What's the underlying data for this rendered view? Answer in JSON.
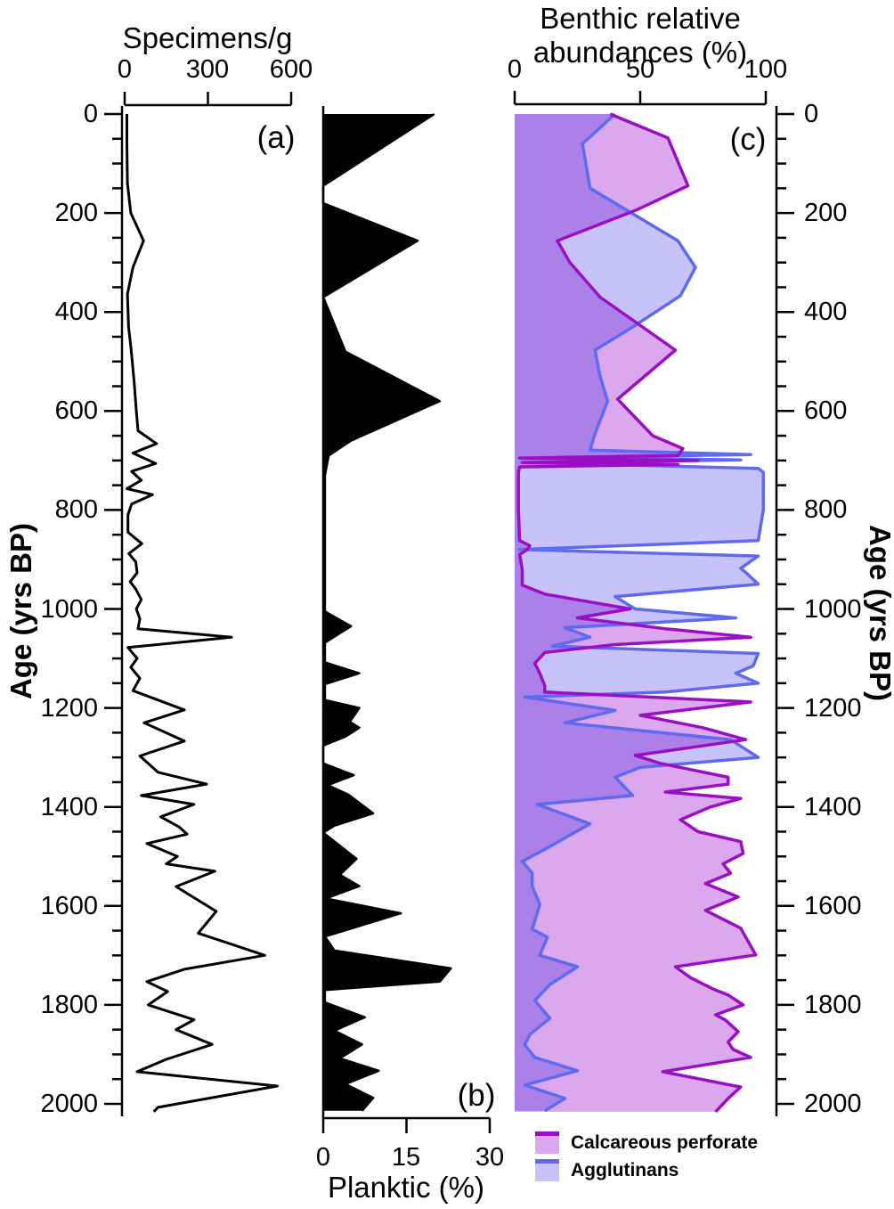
{
  "panels": {
    "a": {
      "label": "(a)"
    },
    "b": {
      "label": "(b)"
    },
    "c": {
      "label": "(c)"
    }
  },
  "age_axis": {
    "title": "Age (yrs BP)",
    "min": 0,
    "max": 2000,
    "major_ticks": [
      0,
      200,
      400,
      600,
      800,
      1000,
      1200,
      1400,
      1600,
      1800,
      2000
    ],
    "minor_step": 50
  },
  "legend": {
    "items": [
      {
        "label": "Calcareous perforate",
        "fill": "#dba7ee",
        "border": "#9a0fc4"
      },
      {
        "label": "Agglutinans",
        "fill": "#c7c3fa",
        "border": "#5f6af0"
      }
    ]
  },
  "chart_data": [
    {
      "type": "line",
      "panel": "a",
      "title": "Specimens/g",
      "xlabel": "Specimens/g",
      "ylabel": "Age (yrs BP)",
      "xlim": [
        0,
        600
      ],
      "xticks": [
        0,
        300,
        600
      ],
      "ylim": [
        0,
        2000
      ],
      "orientation": "vertical_depth_axis",
      "series": [
        {
          "name": "specimens_per_g",
          "color": "#000000",
          "points": [
            [
              0,
              8
            ],
            [
              60,
              8
            ],
            [
              140,
              10
            ],
            [
              200,
              22
            ],
            [
              256,
              68
            ],
            [
              310,
              30
            ],
            [
              364,
              10
            ],
            [
              430,
              14
            ],
            [
              480,
              24
            ],
            [
              540,
              34
            ],
            [
              600,
              42
            ],
            [
              640,
              48
            ],
            [
              666,
              115
            ],
            [
              685,
              30
            ],
            [
              706,
              112
            ],
            [
              722,
              25
            ],
            [
              740,
              60
            ],
            [
              757,
              8
            ],
            [
              769,
              100
            ],
            [
              788,
              25
            ],
            [
              810,
              12
            ],
            [
              845,
              12
            ],
            [
              868,
              62
            ],
            [
              888,
              15
            ],
            [
              905,
              40
            ],
            [
              927,
              45
            ],
            [
              945,
              20
            ],
            [
              960,
              40
            ],
            [
              981,
              60
            ],
            [
              1000,
              42
            ],
            [
              1020,
              55
            ],
            [
              1040,
              48
            ],
            [
              1057,
              385
            ],
            [
              1078,
              12
            ],
            [
              1100,
              45
            ],
            [
              1118,
              22
            ],
            [
              1140,
              55
            ],
            [
              1165,
              30
            ],
            [
              1204,
              215
            ],
            [
              1230,
              70
            ],
            [
              1267,
              215
            ],
            [
              1297,
              55
            ],
            [
              1330,
              120
            ],
            [
              1354,
              295
            ],
            [
              1377,
              60
            ],
            [
              1395,
              250
            ],
            [
              1420,
              130
            ],
            [
              1440,
              195
            ],
            [
              1455,
              225
            ],
            [
              1474,
              80
            ],
            [
              1500,
              190
            ],
            [
              1515,
              150
            ],
            [
              1530,
              325
            ],
            [
              1561,
              185
            ],
            [
              1611,
              330
            ],
            [
              1655,
              265
            ],
            [
              1700,
              505
            ],
            [
              1728,
              215
            ],
            [
              1753,
              80
            ],
            [
              1773,
              155
            ],
            [
              1800,
              85
            ],
            [
              1830,
              250
            ],
            [
              1850,
              185
            ],
            [
              1880,
              315
            ],
            [
              1910,
              150
            ],
            [
              1935,
              45
            ],
            [
              1964,
              550
            ],
            [
              2007,
              120
            ],
            [
              2016,
              105
            ]
          ]
        }
      ]
    },
    {
      "type": "area",
      "panel": "b",
      "title": "Planktic (%)",
      "xlabel": "Planktic (%)",
      "ylabel": "Age (yrs BP)",
      "xlim": [
        0,
        30
      ],
      "xticks": [
        0,
        15,
        30
      ],
      "ylim": [
        0,
        2000
      ],
      "orientation": "vertical_depth_axis",
      "series": [
        {
          "name": "planktic_percent",
          "color": "#000000",
          "fill": "#000000",
          "points": [
            [
              0,
              20
            ],
            [
              145,
              0
            ],
            [
              180,
              0
            ],
            [
              256,
              17
            ],
            [
              370,
              0
            ],
            [
              480,
              4
            ],
            [
              580,
              21
            ],
            [
              660,
              5
            ],
            [
              690,
              1
            ],
            [
              730,
              0.3
            ],
            [
              1005,
              0.3
            ],
            [
              1035,
              5
            ],
            [
              1068,
              0.3
            ],
            [
              1108,
              0.3
            ],
            [
              1130,
              6.5
            ],
            [
              1152,
              0.3
            ],
            [
              1184,
              0.3
            ],
            [
              1200,
              6.5
            ],
            [
              1228,
              4.8
            ],
            [
              1240,
              6.5
            ],
            [
              1258,
              4
            ],
            [
              1276,
              0
            ],
            [
              1312,
              0
            ],
            [
              1336,
              5.5
            ],
            [
              1356,
              0.8
            ],
            [
              1375,
              4.5
            ],
            [
              1413,
              9
            ],
            [
              1438,
              2
            ],
            [
              1452,
              0
            ],
            [
              1474,
              2.5
            ],
            [
              1505,
              6
            ],
            [
              1537,
              3
            ],
            [
              1560,
              6.5
            ],
            [
              1585,
              0.5
            ],
            [
              1615,
              14
            ],
            [
              1662,
              0.3
            ],
            [
              1690,
              2
            ],
            [
              1726,
              23
            ],
            [
              1753,
              21
            ],
            [
              1770,
              0.3
            ],
            [
              1795,
              0.3
            ],
            [
              1825,
              7.5
            ],
            [
              1852,
              2
            ],
            [
              1880,
              7
            ],
            [
              1908,
              3
            ],
            [
              1933,
              10
            ],
            [
              1960,
              4
            ],
            [
              1988,
              9
            ],
            [
              2014,
              7
            ]
          ]
        }
      ]
    },
    {
      "type": "area",
      "panel": "c",
      "title": "Benthic relative abundances (%)",
      "title_line1": "Benthic relative",
      "title_line2": "abundances (%)",
      "xlabel": "Benthic relative abundances (%)",
      "ylabel": "Age (yrs BP)",
      "xlim": [
        0,
        100
      ],
      "xticks": [
        0,
        50,
        100
      ],
      "ylim": [
        0,
        2000
      ],
      "orientation": "vertical_depth_axis",
      "series": [
        {
          "name": "Agglutinans",
          "color": "#5f6af0",
          "fill": "#c7c3fa",
          "points": [
            [
              0,
              40
            ],
            [
              60,
              27
            ],
            [
              150,
              30
            ],
            [
              256,
              65
            ],
            [
              310,
              72
            ],
            [
              367,
              66
            ],
            [
              427,
              48
            ],
            [
              477,
              32
            ],
            [
              530,
              34
            ],
            [
              580,
              37
            ],
            [
              646,
              32
            ],
            [
              679,
              30
            ],
            [
              688,
              94
            ],
            [
              694,
              20
            ],
            [
              699,
              90
            ],
            [
              704,
              15
            ],
            [
              710,
              50
            ],
            [
              716,
              97
            ],
            [
              724,
              99
            ],
            [
              800,
              99
            ],
            [
              862,
              97
            ],
            [
              880,
              2
            ],
            [
              893,
              97
            ],
            [
              918,
              90
            ],
            [
              926,
              92
            ],
            [
              950,
              97
            ],
            [
              975,
              40
            ],
            [
              1000,
              48
            ],
            [
              1018,
              88
            ],
            [
              1038,
              20
            ],
            [
              1057,
              30
            ],
            [
              1075,
              15
            ],
            [
              1090,
              97
            ],
            [
              1115,
              95
            ],
            [
              1130,
              88
            ],
            [
              1150,
              97
            ],
            [
              1168,
              60
            ],
            [
              1178,
              4
            ],
            [
              1205,
              40
            ],
            [
              1230,
              20
            ],
            [
              1264,
              86
            ],
            [
              1300,
              97
            ],
            [
              1320,
              50
            ],
            [
              1340,
              40
            ],
            [
              1377,
              47
            ],
            [
              1395,
              9
            ],
            [
              1434,
              30
            ],
            [
              1480,
              14
            ],
            [
              1510,
              3
            ],
            [
              1534,
              7
            ],
            [
              1561,
              7
            ],
            [
              1597,
              10
            ],
            [
              1647,
              7
            ],
            [
              1663,
              13
            ],
            [
              1700,
              10
            ],
            [
              1723,
              25
            ],
            [
              1759,
              14
            ],
            [
              1791,
              8
            ],
            [
              1827,
              14
            ],
            [
              1860,
              6
            ],
            [
              1881,
              4
            ],
            [
              1906,
              8
            ],
            [
              1933,
              25
            ],
            [
              1962,
              4
            ],
            [
              1989,
              20
            ],
            [
              2014,
              12
            ]
          ]
        },
        {
          "name": "Calcareous perforate",
          "color": "#9a0fc4",
          "fill": "#dba7ee",
          "points": [
            [
              0,
              38
            ],
            [
              48,
              61
            ],
            [
              145,
              69
            ],
            [
              195,
              48
            ],
            [
              256,
              17
            ],
            [
              300,
              22
            ],
            [
              370,
              34
            ],
            [
              477,
              64
            ],
            [
              576,
              41
            ],
            [
              650,
              55
            ],
            [
              676,
              67
            ],
            [
              690,
              65
            ],
            [
              695,
              2
            ],
            [
              700,
              73
            ],
            [
              704,
              3
            ],
            [
              708,
              65
            ],
            [
              713,
              2
            ],
            [
              724,
              1.5
            ],
            [
              800,
              1.5
            ],
            [
              862,
              2
            ],
            [
              872,
              6
            ],
            [
              880,
              5
            ],
            [
              890,
              2
            ],
            [
              920,
              3
            ],
            [
              952,
              3
            ],
            [
              970,
              12
            ],
            [
              1000,
              46
            ],
            [
              1018,
              25
            ],
            [
              1040,
              60
            ],
            [
              1057,
              94
            ],
            [
              1072,
              40
            ],
            [
              1088,
              12
            ],
            [
              1110,
              8
            ],
            [
              1130,
              10
            ],
            [
              1155,
              12
            ],
            [
              1168,
              12
            ],
            [
              1188,
              94
            ],
            [
              1215,
              50
            ],
            [
              1240,
              75
            ],
            [
              1264,
              92
            ],
            [
              1296,
              48
            ],
            [
              1312,
              58
            ],
            [
              1340,
              85
            ],
            [
              1354,
              85
            ],
            [
              1370,
              60
            ],
            [
              1383,
              90
            ],
            [
              1400,
              78
            ],
            [
              1426,
              66
            ],
            [
              1450,
              73
            ],
            [
              1470,
              90
            ],
            [
              1494,
              91
            ],
            [
              1515,
              83
            ],
            [
              1534,
              86
            ],
            [
              1555,
              76
            ],
            [
              1582,
              89
            ],
            [
              1609,
              76
            ],
            [
              1645,
              90
            ],
            [
              1699,
              96
            ],
            [
              1723,
              64
            ],
            [
              1745,
              70
            ],
            [
              1768,
              79
            ],
            [
              1780,
              85
            ],
            [
              1800,
              91
            ],
            [
              1820,
              80
            ],
            [
              1831,
              84
            ],
            [
              1854,
              89
            ],
            [
              1875,
              85
            ],
            [
              1890,
              87
            ],
            [
              1906,
              94
            ],
            [
              1935,
              59
            ],
            [
              1966,
              90
            ],
            [
              1989,
              85
            ],
            [
              2016,
              80
            ]
          ]
        }
      ]
    }
  ]
}
